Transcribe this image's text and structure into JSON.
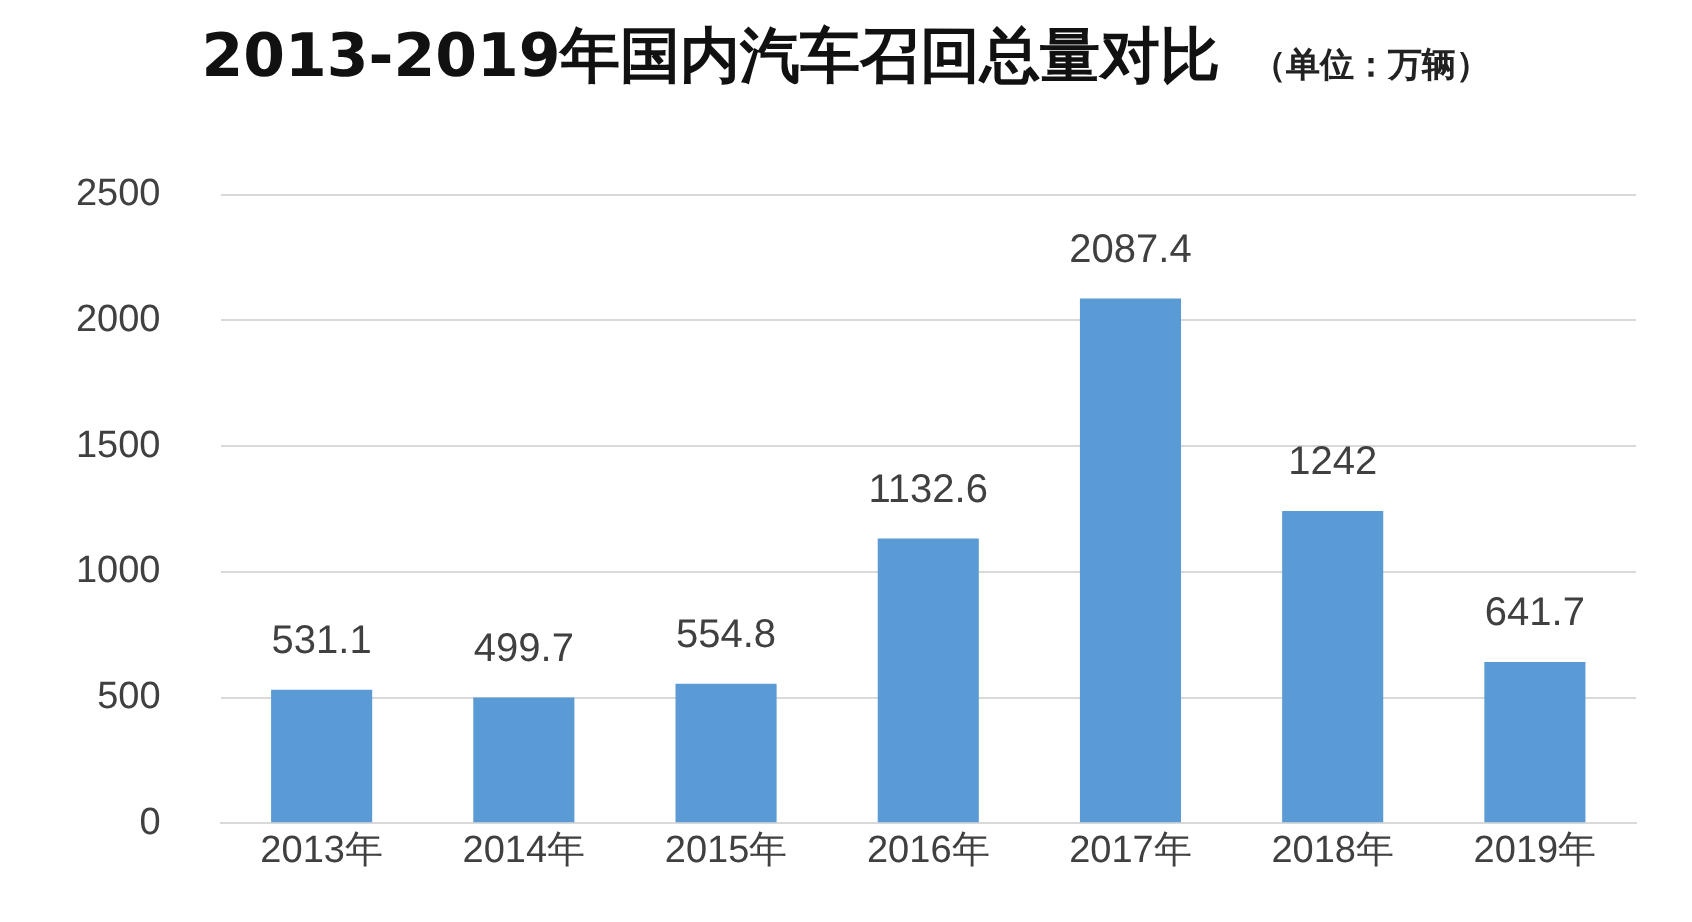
{
  "chart_data": {
    "type": "bar",
    "title": "2013-2019年国内汽车召回总量对比",
    "subtitle": "（单位：万辆）",
    "categories": [
      "2013年",
      "2014年",
      "2015年",
      "2016年",
      "2017年",
      "2018年",
      "2019年"
    ],
    "values": [
      531.1,
      499.7,
      554.8,
      1132.6,
      2087.4,
      1242,
      641.7
    ],
    "color": "#5b9bd5",
    "ylim": [
      0,
      2500
    ],
    "yticks": [
      0,
      500,
      1000,
      1500,
      2000,
      2500
    ],
    "grid": "y",
    "data_labels": true,
    "legend": false
  }
}
